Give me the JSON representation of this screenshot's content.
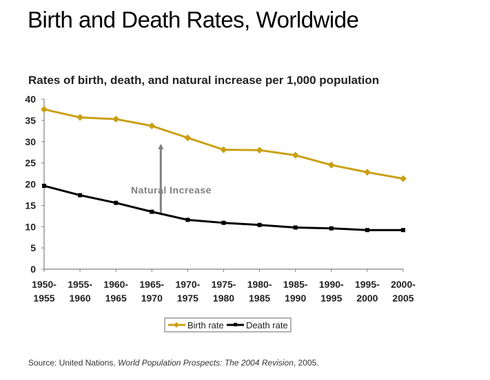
{
  "title": "Birth and Death Rates, Worldwide",
  "source": {
    "prefix": "Source: United Nations, ",
    "italic": "World Population Prospects: The 2004 Revision",
    "suffix": ", 2005."
  },
  "chart_data": {
    "type": "line",
    "title": "Rates of birth, death, and natural increase per 1,000 population",
    "xlabel": "",
    "ylabel": "",
    "ylim": [
      0,
      40
    ],
    "yticks": [
      0,
      5,
      10,
      15,
      20,
      25,
      30,
      35,
      40
    ],
    "grid": false,
    "legend_position": "bottom",
    "categories": [
      [
        "1950-",
        "1955"
      ],
      [
        "1955-",
        "1960"
      ],
      [
        "1960-",
        "1965"
      ],
      [
        "1965-",
        "1970"
      ],
      [
        "1970-",
        "1975"
      ],
      [
        "1975-",
        "1980"
      ],
      [
        "1980-",
        "1985"
      ],
      [
        "1985-",
        "1990"
      ],
      [
        "1990-",
        "1995"
      ],
      [
        "1995-",
        "2000"
      ],
      [
        "2000-",
        "2005"
      ]
    ],
    "series": [
      {
        "name": "Birth rate",
        "color": "#C9A016",
        "marker": "diamond",
        "values": [
          37.6,
          35.7,
          35.3,
          33.7,
          30.9,
          28.1,
          28.0,
          26.8,
          24.5,
          22.8,
          21.3
        ]
      },
      {
        "name": "Death rate",
        "color": "#000000",
        "marker": "square",
        "values": [
          19.6,
          17.4,
          15.6,
          13.5,
          11.6,
          10.9,
          10.4,
          9.8,
          9.6,
          9.2,
          9.2
        ]
      }
    ],
    "annotation": {
      "text": "Natural Increase",
      "color": "#808080",
      "category_index": 3,
      "from": 13.0,
      "to": 29.5
    }
  }
}
